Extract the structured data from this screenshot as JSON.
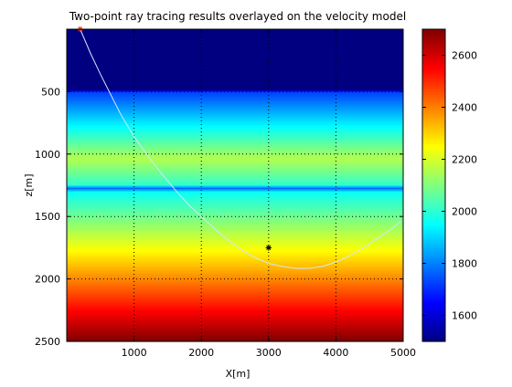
{
  "chart_data": {
    "type": "heatmap",
    "title": "Two-point ray tracing results overlayed on the velocity model",
    "xlabel": "X[m]",
    "ylabel": "z[m]",
    "xlim": [
      0,
      5000
    ],
    "ylim": [
      2500,
      0
    ],
    "y_reversed": true,
    "grid": true,
    "grid_style": "dotted",
    "xticks": [
      1000,
      2000,
      3000,
      4000,
      5000
    ],
    "yticks": [
      500,
      1000,
      1500,
      2000,
      2500
    ],
    "velocity_profile": {
      "description": "velocity varies with depth only",
      "points": [
        {
          "z": 0,
          "v": 1500
        },
        {
          "z": 490,
          "v": 1500
        },
        {
          "z": 500,
          "v": 1720
        },
        {
          "z": 1040,
          "v": 2160
        },
        {
          "z": 1245,
          "v": 2010
        },
        {
          "z": 1275,
          "v": 1770
        },
        {
          "z": 1305,
          "v": 1960
        },
        {
          "z": 2500,
          "v": 2700
        }
      ]
    },
    "colorbar": {
      "colormap": "jet",
      "range": [
        1500,
        2700
      ],
      "ticks": [
        1600,
        1800,
        2000,
        2200,
        2400,
        2600
      ]
    },
    "ray": {
      "color": "#cfe8ff",
      "points": [
        [
          200,
          0
        ],
        [
          350,
          190
        ],
        [
          500,
          360
        ],
        [
          650,
          520
        ],
        [
          800,
          680
        ],
        [
          1000,
          860
        ],
        [
          1200,
          1010
        ],
        [
          1400,
          1150
        ],
        [
          1600,
          1280
        ],
        [
          1800,
          1400
        ],
        [
          2000,
          1500
        ],
        [
          2200,
          1600
        ],
        [
          2400,
          1690
        ],
        [
          2600,
          1770
        ],
        [
          2800,
          1830
        ],
        [
          3000,
          1875
        ],
        [
          3200,
          1900
        ],
        [
          3400,
          1915
        ],
        [
          3600,
          1915
        ],
        [
          3800,
          1900
        ],
        [
          4000,
          1865
        ],
        [
          4200,
          1815
        ],
        [
          4400,
          1755
        ],
        [
          4600,
          1680
        ],
        [
          4800,
          1610
        ],
        [
          4960,
          1540
        ]
      ]
    },
    "markers": [
      {
        "name": "source",
        "x": 200,
        "z": 0,
        "symbol": "*",
        "color": "#ff2a00"
      },
      {
        "name": "receiver",
        "x": 3000,
        "z": 1750,
        "symbol": "*",
        "color": "#000000"
      }
    ]
  }
}
